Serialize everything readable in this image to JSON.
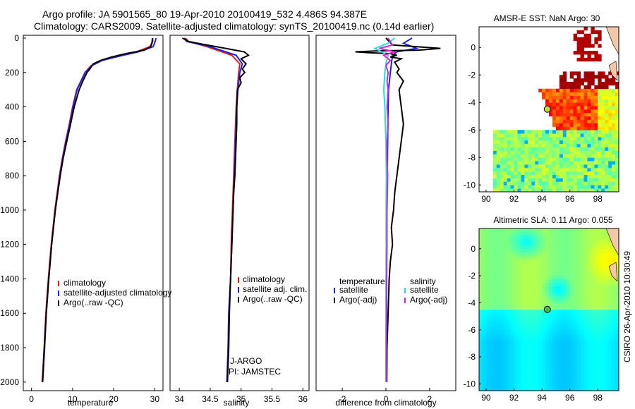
{
  "header": {
    "line1": "Argo profile: JA 5901565_80 19-Apr-2010 20100419_532 4.486S 94.387E",
    "line2": "Climatology: CARS2009. Satellite-adjusted climatology: synTS_20100419.nc (0.14d earlier)"
  },
  "side_label": "CSIRO 26-Apr-2010 10:30:49",
  "colors": {
    "climatology": "#e02020",
    "satellite": "#2020e0",
    "argo": "#000000",
    "sat_salinity": "#20e0e0",
    "argo_salinity": "#e020e0"
  },
  "legend_temperature": [
    "climatology",
    "satellite-adjusted climatology",
    "Argo(..raw -QC)"
  ],
  "legend_salinity": [
    "climatology",
    "satellite adj. clim.",
    "Argo(..raw -QC)"
  ],
  "legend_diff": {
    "temperature_header": "temperature",
    "salinity_header": "salinity",
    "temp_items": [
      "satellite",
      "Argo(-adj)"
    ],
    "sal_items": [
      "satellite",
      "Argo(-adj)"
    ]
  },
  "salinity_notes": [
    "J-ARGO",
    "PI: JAMSTEC"
  ],
  "chart_data": [
    {
      "type": "line",
      "title": "",
      "xlabel": "temperature",
      "ylabel": "",
      "xlim": [
        -2,
        32
      ],
      "ylim": [
        2050,
        0
      ],
      "xticks": [
        0,
        10,
        20,
        30
      ],
      "yticks": [
        0,
        200,
        400,
        600,
        800,
        1000,
        1200,
        1400,
        1600,
        1800,
        2000
      ],
      "series": [
        {
          "name": "climatology",
          "depth": [
            0,
            20,
            50,
            80,
            100,
            130,
            160,
            200,
            300,
            400,
            500,
            600,
            700,
            800,
            1000,
            1200,
            1400,
            1600,
            1800,
            2000
          ],
          "values": [
            29.5,
            29.5,
            28.8,
            25.5,
            22,
            17,
            14.5,
            13,
            11,
            10,
            9.2,
            8.3,
            7.5,
            6.8,
            5.7,
            4.8,
            4.1,
            3.5,
            3.1,
            2.6
          ]
        },
        {
          "name": "satellite-adjusted climatology",
          "depth": [
            0,
            20,
            50,
            80,
            100,
            130,
            160,
            200,
            300,
            400,
            500,
            600,
            700,
            800,
            1000,
            1200,
            1400,
            1600,
            1800,
            2000
          ],
          "values": [
            30.3,
            30.1,
            29.6,
            26,
            22.3,
            17.2,
            14.7,
            13.1,
            11.1,
            10.1,
            9.3,
            8.4,
            7.6,
            6.9,
            5.8,
            4.9,
            4.2,
            3.6,
            3.2,
            2.7
          ]
        },
        {
          "name": "Argo(..raw -QC)",
          "depth": [
            0,
            10,
            30,
            50,
            70,
            90,
            110,
            130,
            150,
            180,
            200,
            250,
            300,
            400,
            500,
            600,
            700,
            800,
            1000,
            1200,
            1400,
            1600,
            1800,
            2000
          ],
          "values": [
            29.5,
            29.4,
            29.3,
            29,
            27.5,
            23,
            19.5,
            16.8,
            15,
            14.2,
            13.5,
            12.5,
            11.6,
            10.4,
            9.5,
            8.6,
            7.7,
            7,
            5.8,
            4.9,
            4.2,
            3.6,
            3.1,
            2.7
          ]
        }
      ]
    },
    {
      "type": "line",
      "title": "",
      "xlabel": "salinity",
      "ylabel": "",
      "xlim": [
        33.85,
        36.1
      ],
      "ylim": [
        2050,
        0
      ],
      "xticks": [
        34,
        34.5,
        35,
        35.5,
        36
      ],
      "series": [
        {
          "name": "climatology",
          "depth": [
            0,
            20,
            50,
            100,
            150,
            200,
            300,
            400,
            500,
            600,
            800,
            1000,
            1200,
            1400,
            1600,
            1800,
            2000
          ],
          "values": [
            34.1,
            34.15,
            34.45,
            34.85,
            34.98,
            34.96,
            34.94,
            34.92,
            34.91,
            34.9,
            34.88,
            34.86,
            34.84,
            34.83,
            34.8,
            34.79,
            34.77
          ]
        },
        {
          "name": "satellite adj. clim.",
          "depth": [
            0,
            20,
            50,
            100,
            150,
            200,
            300,
            400,
            500,
            600,
            800,
            1000,
            1200,
            1400,
            1600,
            1800,
            2000
          ],
          "values": [
            34.08,
            34.12,
            34.5,
            34.92,
            35.02,
            34.98,
            34.95,
            34.93,
            34.92,
            34.91,
            34.89,
            34.87,
            34.85,
            34.83,
            34.8,
            34.79,
            34.77
          ]
        },
        {
          "name": "Argo(..raw -QC)",
          "depth": [
            0,
            20,
            40,
            60,
            80,
            100,
            120,
            150,
            180,
            200,
            230,
            260,
            300,
            400,
            500,
            600,
            800,
            900,
            1000,
            1200,
            1400,
            1600,
            1800,
            2000
          ],
          "values": [
            34.05,
            34.15,
            34.45,
            34.75,
            35.05,
            35.12,
            35.0,
            35.08,
            35.02,
            35.06,
            34.98,
            35.0,
            34.94,
            34.93,
            34.93,
            34.92,
            34.9,
            34.88,
            34.87,
            34.85,
            34.83,
            34.81,
            34.8,
            34.78
          ]
        }
      ]
    },
    {
      "type": "line",
      "title": "",
      "xlabel": "difference from climatology",
      "ylabel": "",
      "xlim": [
        -3.2,
        3.2
      ],
      "ylim": [
        2050,
        0
      ],
      "xticks": [
        -2,
        0,
        2
      ],
      "series": [
        {
          "name": "temperature satellite",
          "depth": [
            0,
            30,
            60,
            80,
            100,
            150,
            200,
            300,
            400,
            600,
            800,
            1000,
            1200,
            1500,
            2000
          ],
          "values": [
            1.2,
            0.8,
            1.4,
            0.5,
            0.3,
            0.25,
            0.2,
            0.12,
            0.1,
            0.08,
            0.06,
            0.05,
            0.04,
            0.03,
            0.02
          ]
        },
        {
          "name": "temperature Argo(-adj)",
          "depth": [
            0,
            40,
            60,
            70,
            75,
            80,
            85,
            90,
            100,
            110,
            120,
            140,
            160,
            180,
            200,
            250,
            300,
            400,
            500,
            600,
            700,
            800,
            900,
            1000,
            1100,
            1200,
            1300,
            1400,
            1600,
            1800,
            2000
          ],
          "values": [
            0,
            0.3,
            2.5,
            1.5,
            -0.5,
            -1.4,
            -0.8,
            0.2,
            0.5,
            0.2,
            0.7,
            0.4,
            0.5,
            0.6,
            0.5,
            0.8,
            0.6,
            0.7,
            0.8,
            0.7,
            0.6,
            0.5,
            0.4,
            0.35,
            0.25,
            0.3,
            0.2,
            0.15,
            0.1,
            0.05,
            0.04
          ]
        },
        {
          "name": "salinity satellite",
          "depth": [
            0,
            30,
            60,
            100,
            150,
            200,
            300,
            400,
            600,
            800,
            1000,
            1200,
            1500,
            2000
          ],
          "values": [
            0.4,
            0.1,
            -0.5,
            0.1,
            0.0,
            -0.05,
            -0.1,
            -0.05,
            0.0,
            0.02,
            0.01,
            0.01,
            0.0,
            0.0
          ]
        },
        {
          "name": "salinity Argo(-adj)",
          "depth": [
            0,
            40,
            60,
            80,
            100,
            130,
            160,
            200,
            250,
            300,
            400,
            500,
            600,
            700,
            800,
            1000,
            1200,
            1400,
            1600,
            1800,
            2000
          ],
          "values": [
            0.1,
            0.3,
            -0.3,
            0.4,
            -0.1,
            0.2,
            0.0,
            0.1,
            0.05,
            0.1,
            0.05,
            0.1,
            0.05,
            0.05,
            0.08,
            0.05,
            0.05,
            0.03,
            0.03,
            0.02,
            0.02
          ]
        }
      ]
    },
    {
      "type": "heatmap",
      "title": "AMSR-E SST: NaN Argo: 30",
      "xticks": [
        90,
        92,
        94,
        96,
        98
      ],
      "yticks": [
        0,
        -2,
        -4,
        -6,
        -8,
        -10
      ],
      "xlim": [
        89.5,
        99.5
      ],
      "ylim": [
        -10.5,
        1.5
      ],
      "marker": {
        "lon": 94.387,
        "lat": -4.486
      }
    },
    {
      "type": "heatmap",
      "title": "Altimetric SLA: 0.11 Argo: 0.055",
      "xticks": [
        90,
        92,
        94,
        96,
        98
      ],
      "yticks": [
        0,
        -2,
        -4,
        -6,
        -8,
        -10
      ],
      "xlim": [
        89.5,
        99.5
      ],
      "ylim": [
        -10.5,
        1.5
      ],
      "marker": {
        "lon": 94.387,
        "lat": -4.486
      }
    }
  ]
}
